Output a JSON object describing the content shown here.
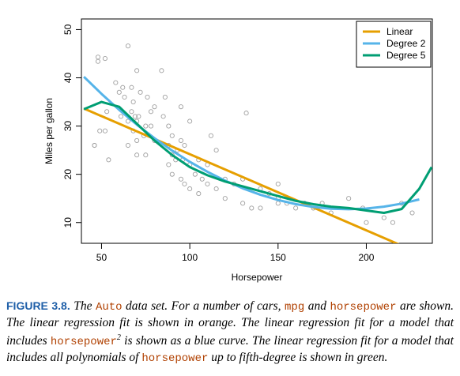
{
  "chart_data": {
    "type": "scatter",
    "xlabel": "Horsepower",
    "ylabel": "Miles per gallon",
    "xlim": [
      38.6,
      237.4
    ],
    "ylim": [
      5.7,
      52.2
    ],
    "xticks": [
      50,
      100,
      150,
      200
    ],
    "yticks": [
      10,
      20,
      30,
      40,
      50
    ],
    "points": {
      "color": "#a0a0a0",
      "x": [
        46,
        46,
        48,
        48,
        49,
        52,
        52,
        53,
        54,
        58,
        60,
        61,
        62,
        63,
        65,
        65,
        65,
        67,
        67,
        68,
        68,
        69,
        70,
        70,
        70,
        70,
        71,
        72,
        74,
        75,
        75,
        76,
        78,
        78,
        80,
        80,
        84,
        85,
        86,
        88,
        88,
        88,
        90,
        90,
        90,
        92,
        93,
        95,
        95,
        95,
        96,
        97,
        97,
        100,
        100,
        100,
        103,
        105,
        105,
        107,
        110,
        110,
        112,
        115,
        115,
        120,
        120,
        125,
        130,
        130,
        132,
        135,
        140,
        140,
        145,
        150,
        150,
        150,
        155,
        160,
        165,
        170,
        175,
        180,
        190,
        198,
        200,
        210,
        215,
        220,
        226
      ],
      "y": [
        26,
        26,
        43.4,
        44.3,
        29,
        29,
        44,
        33,
        23,
        39,
        37,
        32,
        38,
        36,
        46.6,
        31,
        26,
        33,
        38,
        35,
        29,
        32,
        31,
        41.5,
        24,
        27,
        32,
        37,
        28,
        30,
        24,
        36,
        30,
        33,
        27,
        34,
        41.5,
        32,
        36,
        26,
        22,
        30,
        28,
        24,
        20,
        23,
        25,
        27,
        19,
        34,
        23,
        26,
        18,
        22,
        17,
        31,
        20,
        23,
        16,
        19,
        22,
        18,
        28,
        17,
        25,
        19,
        15,
        18,
        14,
        19,
        32.7,
        13,
        17,
        13,
        16,
        14,
        15,
        18,
        14,
        13,
        14,
        13,
        14,
        12,
        15,
        13,
        10,
        11,
        10,
        14,
        12
      ]
    },
    "series": [
      {
        "name": "Linear",
        "color": "#e69f00",
        "x": [
          40,
          230
        ],
        "values": [
          33.63,
          3.65
        ]
      },
      {
        "name": "Degree 2",
        "color": "#56b4e9",
        "x": [
          40,
          50,
          60,
          70,
          80,
          90,
          100,
          110,
          120,
          130,
          140,
          150,
          160,
          170,
          180,
          190,
          200,
          210,
          220,
          230
        ],
        "values": [
          40.22,
          36.67,
          33.36,
          30.3,
          27.48,
          24.91,
          22.59,
          20.52,
          18.69,
          17.09,
          15.76,
          14.67,
          13.82,
          13.23,
          12.86,
          12.76,
          12.9,
          13.29,
          13.92,
          14.79
        ]
      },
      {
        "name": "Degree 5",
        "color": "#009e73",
        "x": [
          40,
          50,
          60,
          70,
          80,
          90,
          100,
          110,
          120,
          130,
          140,
          150,
          160,
          170,
          180,
          190,
          200,
          210,
          220,
          230,
          237
        ],
        "values": [
          33.5,
          35,
          34,
          30.5,
          27,
          24,
          21.5,
          19.8,
          18.5,
          17.5,
          16.5,
          15.5,
          14.5,
          13.8,
          13.3,
          13,
          12.5,
          12,
          12.8,
          17,
          21.5
        ]
      }
    ],
    "legend": "top-right"
  },
  "figure": {
    "label": "FIGURE 3.8.",
    "caption": [
      {
        "text": "The ",
        "style": "italic"
      },
      {
        "text": "Auto",
        "style": "mono"
      },
      {
        "text": " data set. For a number of cars, ",
        "style": "italic"
      },
      {
        "text": "mpg",
        "style": "mono"
      },
      {
        "text": " and ",
        "style": "italic"
      },
      {
        "text": "horsepower",
        "style": "mono"
      },
      {
        "text": " are shown. The linear regression fit is shown in orange. The linear regression fit for a model that includes ",
        "style": "italic"
      },
      {
        "text": "horsepower",
        "style": "mono"
      },
      {
        "text": "2",
        "style": "sup"
      },
      {
        "text": " is shown as a blue curve. The linear regression fit for a model that includes all polynomials of ",
        "style": "italic"
      },
      {
        "text": "horsepower",
        "style": "mono"
      },
      {
        "text": " up to fifth-degree is shown in green.",
        "style": "italic"
      }
    ]
  }
}
